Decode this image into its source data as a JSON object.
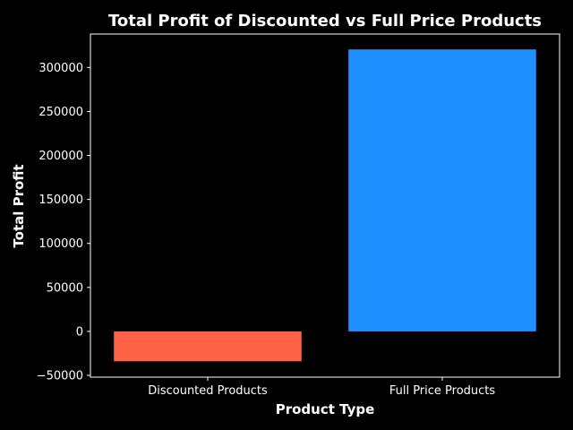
{
  "chart_data": {
    "type": "bar",
    "title": "Total Profit of Discounted vs Full Price Products",
    "xlabel": "Product Type",
    "ylabel": "Total Profit",
    "categories": [
      "Discounted Products",
      "Full Price Products"
    ],
    "values": [
      -34000,
      320500
    ],
    "colors": [
      "#ff6347",
      "#1e90ff"
    ],
    "ylim": [
      -52000,
      338000
    ],
    "yticks": [
      -50000,
      0,
      50000,
      100000,
      150000,
      200000,
      250000,
      300000
    ],
    "ytick_labels": [
      "−50000",
      "0",
      "50000",
      "100000",
      "150000",
      "200000",
      "250000",
      "300000"
    ],
    "grid": false,
    "legend": "none",
    "background": "#000000",
    "foreground": "#ffffff"
  }
}
